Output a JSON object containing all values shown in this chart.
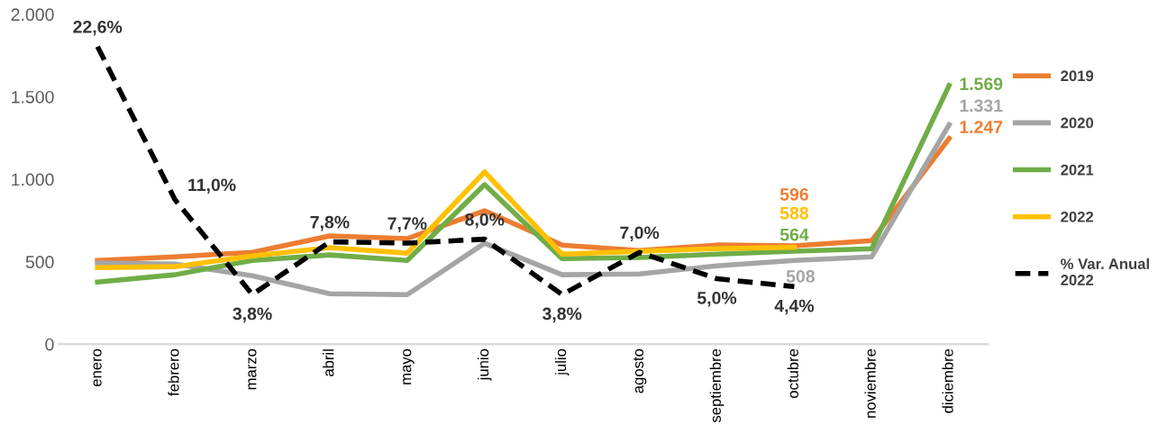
{
  "chart_data": {
    "type": "line",
    "categories": [
      "enero",
      "febrero",
      "marzo",
      "abril",
      "mayo",
      "junio",
      "julio",
      "agosto",
      "septiembre",
      "octubre",
      "noviembre",
      "diciembre"
    ],
    "series": [
      {
        "name": "2019",
        "color": "#ed7d31",
        "values": [
          508,
          530,
          557,
          656,
          640,
          809,
          601,
          568,
          601,
          596,
          628,
          1247
        ],
        "value_labels": [
          null,
          null,
          null,
          null,
          null,
          null,
          null,
          null,
          null,
          "596",
          null,
          "1.247"
        ]
      },
      {
        "name": "2020",
        "color": "#a5a5a5",
        "values": [
          492,
          486,
          415,
          306,
          300,
          612,
          421,
          426,
          475,
          508,
          530,
          1331
        ],
        "value_labels": [
          null,
          null,
          null,
          null,
          null,
          null,
          null,
          null,
          null,
          "508",
          null,
          "1.331"
        ]
      },
      {
        "name": "2021",
        "color": "#70ad47",
        "values": [
          377,
          421,
          508,
          541,
          508,
          967,
          519,
          525,
          546,
          564,
          579,
          1569
        ],
        "value_labels": [
          null,
          null,
          null,
          null,
          null,
          null,
          null,
          null,
          null,
          "564",
          null,
          "1.569"
        ]
      },
      {
        "name": "2022",
        "color": "#ffc000",
        "values": [
          464,
          470,
          535,
          585,
          552,
          1044,
          546,
          563,
          579,
          588,
          null,
          null
        ],
        "value_labels": [
          null,
          null,
          null,
          null,
          null,
          null,
          null,
          null,
          null,
          "588",
          null,
          null
        ]
      },
      {
        "name": "% Var. Anual\n2022",
        "color": "#000000",
        "axis": "y2",
        "line_style": "dashed",
        "values": [
          22.6,
          11.0,
          3.8,
          7.8,
          7.7,
          8.0,
          3.8,
          7.0,
          5.0,
          4.4,
          null,
          null
        ],
        "value_labels": [
          "22,6%",
          "11,0%",
          "3,8%",
          "7,8%",
          "7,7%",
          "8,0%",
          "3,8%",
          "7,0%",
          "5,0%",
          "4,4%",
          null,
          null
        ]
      }
    ],
    "ylim": [
      0,
      2000
    ],
    "yticks": [
      0,
      500,
      {
        "value": 1000,
        "label": "1.000"
      },
      {
        "value": 1500,
        "label": "1.500"
      },
      {
        "value": 2000,
        "label": "2.000"
      }
    ],
    "grid": false,
    "legend": "right"
  }
}
